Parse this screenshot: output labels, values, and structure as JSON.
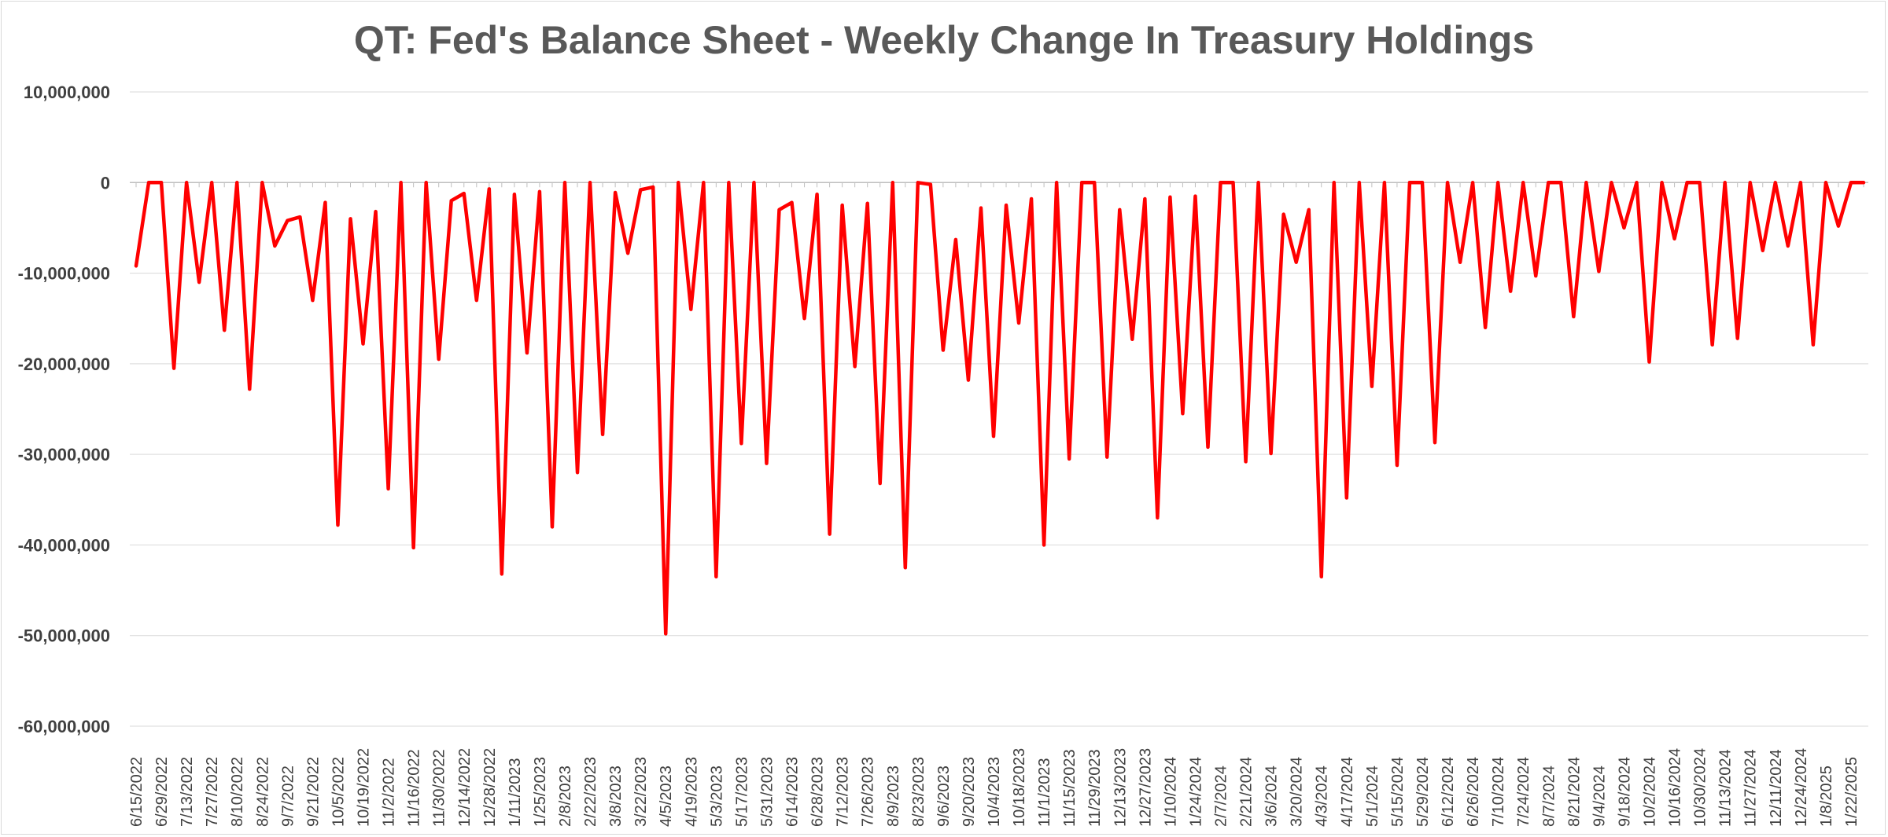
{
  "chart_data": {
    "type": "line",
    "title": "QT: Fed's Balance Sheet - Weekly Change In Treasury Holdings",
    "xlabel": "",
    "ylabel": "",
    "ylim": [
      -60000000,
      10000000
    ],
    "y_ticks": [
      10000000,
      0,
      -10000000,
      -20000000,
      -30000000,
      -40000000,
      -50000000,
      -60000000
    ],
    "y_tick_labels": [
      "10,000,000",
      "0",
      "-10,000,000",
      "-20,000,000",
      "-30,000,000",
      "-40,000,000",
      "-50,000,000",
      "-60,000,000"
    ],
    "grid": true,
    "legend": "none",
    "line_color": "#ff0000",
    "x_tick_labels": [
      "6/15/2022",
      "6/29/2022",
      "7/13/2022",
      "7/27/2022",
      "8/10/2022",
      "8/24/2022",
      "9/7/2022",
      "9/21/2022",
      "10/5/2022",
      "10/19/2022",
      "11/2/2022",
      "11/16/2022",
      "11/30/2022",
      "12/14/2022",
      "12/28/2022",
      "1/11/2023",
      "1/25/2023",
      "2/8/2023",
      "2/22/2023",
      "3/8/2023",
      "3/22/2023",
      "4/5/2023",
      "4/19/2023",
      "5/3/2023",
      "5/17/2023",
      "5/31/2023",
      "6/14/2023",
      "6/28/2023",
      "7/12/2023",
      "7/26/2023",
      "8/9/2023",
      "8/23/2023",
      "9/6/2023",
      "9/20/2023",
      "10/4/2023",
      "10/18/2023",
      "11/1/2023",
      "11/15/2023",
      "11/29/2023",
      "12/13/2023",
      "12/27/2023",
      "1/10/2024",
      "1/24/2024",
      "2/7/2024",
      "2/21/2024",
      "3/6/2024",
      "3/20/2024",
      "4/3/2024",
      "4/17/2024",
      "5/1/2024",
      "5/15/2024",
      "5/29/2024",
      "6/12/2024",
      "6/26/2024",
      "7/10/2024",
      "7/24/2024",
      "8/7/2024",
      "8/21/2024",
      "9/4/2024",
      "9/18/2024",
      "10/2/2024",
      "10/16/2024",
      "10/30/2024",
      "11/13/2024",
      "11/27/2024",
      "12/11/2024",
      "12/24/2024",
      "1/8/2025",
      "1/22/2025"
    ],
    "series": [
      {
        "values": [
          -9200000,
          0,
          0,
          -20500000,
          0,
          -11000000,
          0,
          -16300000,
          0,
          -22800000,
          0,
          -7000000,
          -4200000,
          -3800000,
          -13000000,
          -2200000,
          -37800000,
          -4000000,
          -17800000,
          -3200000,
          -33800000,
          0,
          -40300000,
          0,
          -19500000,
          -2000000,
          -1200000,
          -13000000,
          -700000,
          -43200000,
          -1300000,
          -18800000,
          -1000000,
          -38000000,
          0,
          -32000000,
          0,
          -27800000,
          -1100000,
          -7800000,
          -800000,
          -500000,
          -49800000,
          0,
          -14000000,
          0,
          -43500000,
          0,
          -28800000,
          0,
          -31000000,
          -3000000,
          -2200000,
          -15000000,
          -1300000,
          -38800000,
          -2500000,
          -20300000,
          -2300000,
          -33200000,
          0,
          -42500000,
          0,
          -200000,
          -18500000,
          -6300000,
          -21800000,
          -2800000,
          -28000000,
          -2500000,
          -15500000,
          -1800000,
          -40000000,
          0,
          -30500000,
          0,
          0,
          -30300000,
          -3000000,
          -17300000,
          -1800000,
          -37000000,
          -1600000,
          -25500000,
          -1500000,
          -29200000,
          0,
          0,
          -30800000,
          0,
          -29900000,
          -3500000,
          -8800000,
          -3000000,
          -43500000,
          0,
          -34800000,
          0,
          -22500000,
          0,
          -31200000,
          0,
          0,
          -28700000,
          0,
          -8800000,
          0,
          -16000000,
          0,
          -12000000,
          0,
          -10300000,
          0,
          0,
          -14800000,
          0,
          -9800000,
          0,
          -5000000,
          0,
          -19800000,
          0,
          -6200000,
          0,
          0,
          -17900000,
          0,
          -17200000,
          0,
          -7500000,
          0,
          -7000000,
          0,
          -17900000,
          0,
          -4800000,
          0,
          0
        ]
      }
    ]
  }
}
